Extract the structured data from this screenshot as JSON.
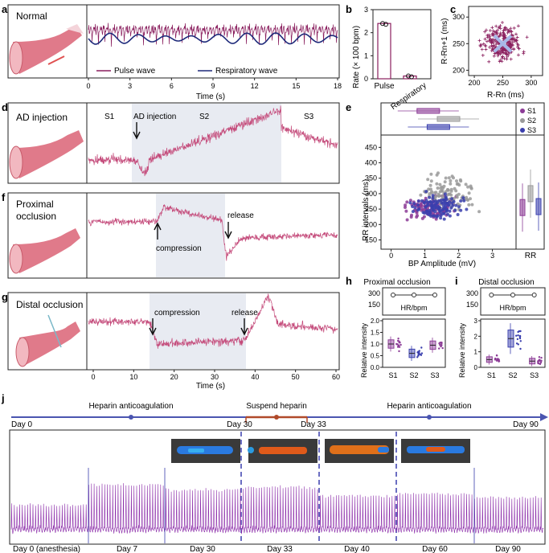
{
  "colors": {
    "pulse": "#8a1f5e",
    "respiratory": "#1e2a7a",
    "trace": "#c44a7a",
    "s1": "#8c3c96",
    "s2": "#9a9a9a",
    "s3": "#3a3fae",
    "shade": "#e8ebf2",
    "timeline": "#4a55b0",
    "suspend": "#b04a2a",
    "j_trace": "#8a2aa8"
  },
  "panels": {
    "a": {
      "letter": "a",
      "title": "Normal",
      "x_ticks": [
        "0",
        "3",
        "6",
        "9",
        "12",
        "15",
        "18"
      ],
      "xlabel": "Time (s)",
      "legend": {
        "pulse": "Pulse wave",
        "resp": "Respiratory wave"
      }
    },
    "b": {
      "letter": "b",
      "ylabel": "Rate (× 100 bpm)",
      "y_ticks": [
        "0",
        "1",
        "2",
        "3"
      ],
      "categories": [
        "Pulse",
        "Respiratory"
      ]
    },
    "c": {
      "letter": "c",
      "xlabel": "R-Rn (ms)",
      "ylabel": "R-Rn+1 (ms)",
      "x_ticks": [
        "200",
        "250",
        "300"
      ],
      "y_ticks": [
        "200",
        "250",
        "300"
      ]
    },
    "d": {
      "letter": "d",
      "title": "AD injection",
      "segments": [
        "S1",
        "S2",
        "S3"
      ],
      "annotation": "AD injection"
    },
    "e": {
      "letter": "e",
      "xlabel": "BP Amplitude (mV)",
      "ylabel": "RR intervals (ms)",
      "x_ticks": [
        "0",
        "1",
        "2",
        "3"
      ],
      "y_ticks": [
        "150",
        "200",
        "250",
        "300",
        "350",
        "400",
        "450"
      ],
      "legend": [
        "S1",
        "S2",
        "S3"
      ],
      "side_label": "RR"
    },
    "f": {
      "letter": "f",
      "title_line1": "Proximal",
      "title_line2": "occlusion",
      "annotation1": "compression",
      "annotation2": "release"
    },
    "g": {
      "letter": "g",
      "title": "Distal occlusion",
      "annotation1": "compression",
      "annotation2": "release",
      "x_ticks": [
        "0",
        "10",
        "20",
        "30",
        "40",
        "50",
        "60"
      ],
      "xlabel": "Time (s)"
    },
    "h": {
      "letter": "h",
      "title": "Proximal occlusion",
      "hr_label": "HR/bpm",
      "hr_ticks": [
        "300",
        "150"
      ],
      "ylabel": "Relative intensity",
      "y_ticks": [
        "0.0",
        "0.5",
        "1.0",
        "1.5",
        "2.0"
      ],
      "categories": [
        "S1",
        "S2",
        "S3"
      ]
    },
    "i": {
      "letter": "i",
      "title": "Distal occlusion",
      "hr_label": "HR/bpm",
      "hr_ticks": [
        "300",
        "150"
      ],
      "ylabel": "Relative intensity",
      "y_ticks": [
        "0",
        "1",
        "2",
        "3"
      ],
      "categories": [
        "S1",
        "S2",
        "S3"
      ]
    },
    "j": {
      "letter": "j",
      "timeline": {
        "day0": "Day 0",
        "day30": "Day 30",
        "day33": "Day 33",
        "day90": "Day 90",
        "heparin1": "Heparin anticoagulation",
        "suspend": "Suspend heparin",
        "heparin2": "Heparin anticoagulation"
      },
      "segments": [
        "Day 0 (anesthesia)",
        "Day 7",
        "Day 30",
        "Day 33",
        "Day 40",
        "Day 60",
        "Day 90"
      ]
    }
  },
  "chart_data": [
    {
      "id": "b",
      "type": "bar",
      "title": "",
      "categories": [
        "Pulse",
        "Respiratory"
      ],
      "values": [
        2.4,
        0.12
      ],
      "ylabel": "Rate (× 100 bpm)",
      "ylim": [
        0,
        3
      ]
    },
    {
      "id": "c",
      "type": "scatter",
      "title": "",
      "xlabel": "R-Rn (ms)",
      "ylabel": "R-Rn+1 (ms)",
      "xlim": [
        190,
        320
      ],
      "ylim": [
        190,
        320
      ],
      "center": [
        250,
        250
      ]
    },
    {
      "id": "e",
      "type": "scatter",
      "xlabel": "BP Amplitude (mV)",
      "ylabel": "RR intervals (ms)",
      "xlim": [
        -0.3,
        3.7
      ],
      "ylim": [
        120,
        490
      ],
      "series": [
        {
          "name": "S1",
          "center": [
            1.1,
            255
          ]
        },
        {
          "name": "S2",
          "center": [
            1.7,
            300
          ]
        },
        {
          "name": "S3",
          "center": [
            1.4,
            258
          ]
        }
      ]
    },
    {
      "id": "h",
      "type": "box",
      "categories": [
        "S1",
        "S2",
        "S3"
      ],
      "medians": [
        1.0,
        0.6,
        0.95
      ],
      "ylim": [
        0,
        2
      ],
      "hr": [
        300,
        300,
        300
      ]
    },
    {
      "id": "i",
      "type": "box",
      "categories": [
        "S1",
        "S2",
        "S3"
      ],
      "medians": [
        0.5,
        1.85,
        0.4
      ],
      "ylim": [
        0,
        3
      ],
      "hr": [
        300,
        300,
        300
      ]
    }
  ]
}
